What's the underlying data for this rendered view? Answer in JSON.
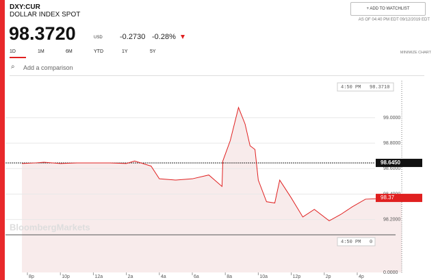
{
  "header": {
    "ticker": "DXY:CUR",
    "name": "DOLLAR INDEX SPOT",
    "price": "98.3720",
    "currency": "USD",
    "change": "-0.2730",
    "change_pct": "-0.28%",
    "as_of": "AS OF 04:40 PM EDT 09/12/2019 EDT",
    "watchlist": "ADD TO WATCHLIST"
  },
  "ranges": [
    "1D",
    "1M",
    "6M",
    "YTD",
    "1Y",
    "5Y"
  ],
  "minimize": "MINIMIZE CHART",
  "comparison_placeholder": "Add a comparison",
  "watermark": "BloombergMarkets",
  "chart_data": {
    "type": "line",
    "color": "#e02020",
    "x": [
      -0.33,
      0.5,
      1,
      2,
      3,
      4,
      5,
      6,
      6.5,
      7.5,
      8,
      9,
      10,
      11,
      11.8,
      11.85,
      12.3,
      12.8,
      13.2,
      13.5,
      13.8,
      14,
      14.5,
      15,
      15.3,
      16,
      16.7,
      17.4,
      18.3,
      19,
      19.7,
      20.5,
      21.5,
      22.7
    ],
    "series": [
      {
        "values": [
          98.64,
          98.645,
          98.65,
          98.64,
          98.645,
          98.645,
          98.645,
          98.64,
          98.66,
          98.62,
          98.52,
          98.51,
          98.52,
          98.55,
          98.46,
          98.66,
          98.82,
          99.08,
          98.95,
          98.78,
          98.75,
          98.51,
          98.34,
          98.33,
          98.51,
          98.37,
          98.22,
          98.28,
          98.19,
          98.24,
          98.3,
          98.36,
          98.365,
          98.37
        ]
      }
    ],
    "xlim": [
      -1.33,
      21.08
    ],
    "xticks": [
      {
        "value": 0,
        "label": "8p"
      },
      {
        "value": 2,
        "label": "10p"
      },
      {
        "value": 4,
        "label": "12a"
      },
      {
        "value": 6,
        "label": "2a"
      },
      {
        "value": 8,
        "label": "4a"
      },
      {
        "value": 10,
        "label": "6a"
      },
      {
        "value": 12,
        "label": "8a"
      },
      {
        "value": 14,
        "label": "10a"
      },
      {
        "value": 16,
        "label": "12p"
      },
      {
        "value": 18,
        "label": "2p"
      },
      {
        "value": 20,
        "label": "4p"
      }
    ],
    "ylim": [
      98.08,
      99.29
    ],
    "yticks": [
      {
        "value": 99,
        "label": "99.0000"
      },
      {
        "value": 98.8,
        "label": "98.8000"
      },
      {
        "value": 98.6,
        "label": "98.6000"
      },
      {
        "value": 98.4,
        "label": "98.4000"
      },
      {
        "value": 98.2,
        "label": "98.2000"
      }
    ],
    "volume_axis_label": "0.0000",
    "previous_close": {
      "value": 98.645,
      "label": "98.6450"
    },
    "last": {
      "value": 98.37,
      "label": "98.37"
    },
    "crosshair": {
      "time": "4:50 PM",
      "value": "98.3710",
      "volume": "0"
    }
  }
}
